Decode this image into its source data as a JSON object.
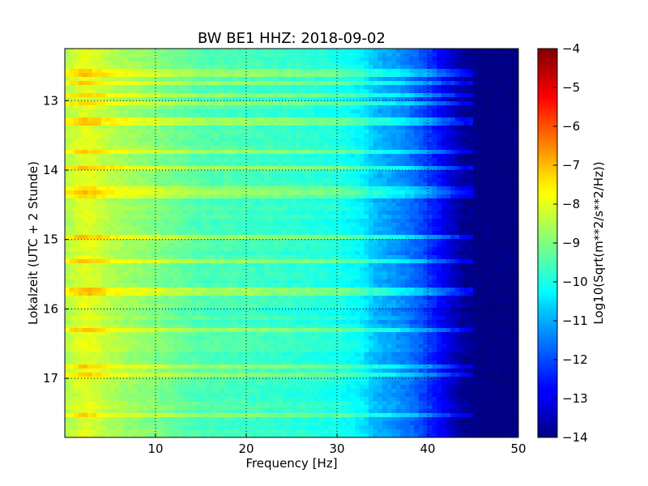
{
  "chart_data": {
    "type": "heatmap",
    "title": "BW BE1 HHZ: 2018-09-02",
    "xlabel": "Frequency [Hz]",
    "ylabel": "Lokalzeit (UTC + 2 Stunde)",
    "xlim": [
      0,
      50
    ],
    "ylim": [
      12.25,
      17.85
    ],
    "y_inverted": true,
    "xticks": [
      10,
      20,
      30,
      40,
      50
    ],
    "yticks": [
      13,
      14,
      15,
      16,
      17
    ],
    "grid": true,
    "colormap": "jet",
    "colorbar": {
      "label": "Log10(Sqrt(m**2/s**2/Hz))",
      "range": [
        -14,
        -4
      ],
      "ticks": [
        -14,
        -13,
        -12,
        -11,
        -10,
        -9,
        -8,
        -7,
        -6,
        -5,
        -4
      ]
    },
    "spectrum_profile": {
      "description_free": true,
      "freq_hz": [
        0,
        1,
        2,
        3,
        5,
        8,
        10,
        15,
        20,
        25,
        30,
        33,
        34,
        36,
        38,
        40,
        42,
        44,
        46,
        50
      ],
      "log_amplitude": [
        -8.6,
        -8.3,
        -8.0,
        -8.1,
        -8.5,
        -8.8,
        -9.0,
        -9.5,
        -9.6,
        -9.8,
        -10.0,
        -10.4,
        -10.9,
        -11.2,
        -11.6,
        -12.2,
        -13.0,
        -13.8,
        -14.0,
        -14.0
      ]
    },
    "bright_rows_local_time": [
      12.6,
      12.75,
      12.9,
      13.05,
      13.3,
      13.75,
      13.95,
      14.25,
      14.35,
      14.95,
      15.3,
      15.75,
      16.3,
      16.85,
      16.95,
      17.55
    ]
  }
}
